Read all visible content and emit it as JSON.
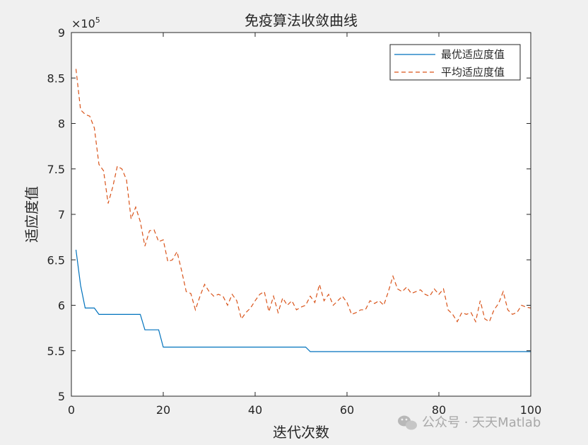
{
  "chart_data": {
    "type": "line",
    "title": "免疫算法收敛曲线",
    "xlabel": "迭代次数",
    "ylabel": "适应度值",
    "y_exponent_label": "×10",
    "y_exponent_power": "5",
    "xlim": [
      0,
      100
    ],
    "ylim": [
      5,
      9
    ],
    "x_ticks": [
      "0",
      "20",
      "40",
      "60",
      "80",
      "100"
    ],
    "y_ticks": [
      "5",
      "5.5",
      "6",
      "6.5",
      "7",
      "7.5",
      "8",
      "8.5",
      "9"
    ],
    "legend_position": "top-right",
    "grid": false,
    "series": [
      {
        "name": "最优适应度值",
        "color": "#0072bd",
        "style": "solid",
        "points": [
          [
            1,
            6.61
          ],
          [
            2,
            6.22
          ],
          [
            3,
            5.97
          ],
          [
            5,
            5.97
          ],
          [
            6,
            5.9
          ],
          [
            15,
            5.9
          ],
          [
            16,
            5.73
          ],
          [
            19,
            5.73
          ],
          [
            20,
            5.54
          ],
          [
            51,
            5.54
          ],
          [
            52,
            5.49
          ],
          [
            100,
            5.49
          ]
        ]
      },
      {
        "name": "平均适应度值",
        "color": "#d95319",
        "style": "dashed",
        "points": [
          [
            1,
            8.6
          ],
          [
            2,
            8.15
          ],
          [
            3,
            8.1
          ],
          [
            4,
            8.08
          ],
          [
            5,
            7.95
          ],
          [
            6,
            7.55
          ],
          [
            7,
            7.48
          ],
          [
            8,
            7.12
          ],
          [
            9,
            7.3
          ],
          [
            10,
            7.53
          ],
          [
            11,
            7.5
          ],
          [
            12,
            7.38
          ],
          [
            13,
            6.95
          ],
          [
            14,
            7.08
          ],
          [
            15,
            6.92
          ],
          [
            16,
            6.65
          ],
          [
            17,
            6.82
          ],
          [
            18,
            6.83
          ],
          [
            19,
            6.7
          ],
          [
            20,
            6.72
          ],
          [
            21,
            6.48
          ],
          [
            22,
            6.5
          ],
          [
            23,
            6.59
          ],
          [
            24,
            6.38
          ],
          [
            25,
            6.15
          ],
          [
            26,
            6.13
          ],
          [
            27,
            5.95
          ],
          [
            28,
            6.1
          ],
          [
            29,
            6.23
          ],
          [
            30,
            6.15
          ],
          [
            31,
            6.1
          ],
          [
            32,
            6.12
          ],
          [
            33,
            6.1
          ],
          [
            34,
            6.0
          ],
          [
            35,
            6.12
          ],
          [
            36,
            6.05
          ],
          [
            37,
            5.85
          ],
          [
            38,
            5.92
          ],
          [
            39,
            5.97
          ],
          [
            40,
            6.05
          ],
          [
            41,
            6.12
          ],
          [
            42,
            6.15
          ],
          [
            43,
            5.93
          ],
          [
            44,
            6.1
          ],
          [
            45,
            5.92
          ],
          [
            46,
            6.08
          ],
          [
            47,
            6.0
          ],
          [
            48,
            6.05
          ],
          [
            49,
            5.95
          ],
          [
            50,
            5.98
          ],
          [
            51,
            6.0
          ],
          [
            52,
            6.1
          ],
          [
            53,
            6.03
          ],
          [
            54,
            6.23
          ],
          [
            55,
            6.05
          ],
          [
            56,
            6.12
          ],
          [
            57,
            6.0
          ],
          [
            58,
            6.05
          ],
          [
            59,
            6.1
          ],
          [
            60,
            6.03
          ],
          [
            61,
            5.9
          ],
          [
            62,
            5.92
          ],
          [
            63,
            5.95
          ],
          [
            64,
            5.95
          ],
          [
            65,
            6.05
          ],
          [
            66,
            6.02
          ],
          [
            67,
            6.05
          ],
          [
            68,
            6.0
          ],
          [
            69,
            6.15
          ],
          [
            70,
            6.32
          ],
          [
            71,
            6.18
          ],
          [
            72,
            6.15
          ],
          [
            73,
            6.2
          ],
          [
            74,
            6.13
          ],
          [
            75,
            6.15
          ],
          [
            76,
            6.17
          ],
          [
            77,
            6.12
          ],
          [
            78,
            6.1
          ],
          [
            79,
            6.18
          ],
          [
            80,
            6.12
          ],
          [
            81,
            6.18
          ],
          [
            82,
            5.95
          ],
          [
            83,
            5.9
          ],
          [
            84,
            5.82
          ],
          [
            85,
            5.92
          ],
          [
            86,
            5.9
          ],
          [
            87,
            5.92
          ],
          [
            88,
            5.82
          ],
          [
            89,
            6.05
          ],
          [
            90,
            5.85
          ],
          [
            91,
            5.82
          ],
          [
            92,
            5.95
          ],
          [
            93,
            6.02
          ],
          [
            94,
            6.15
          ],
          [
            95,
            5.95
          ],
          [
            96,
            5.9
          ],
          [
            97,
            5.92
          ],
          [
            98,
            6.0
          ],
          [
            99,
            5.98
          ],
          [
            100,
            5.97
          ]
        ]
      }
    ]
  },
  "watermark": {
    "text": "公众号 · 天天Matlab",
    "icon": "wechat-icon"
  }
}
